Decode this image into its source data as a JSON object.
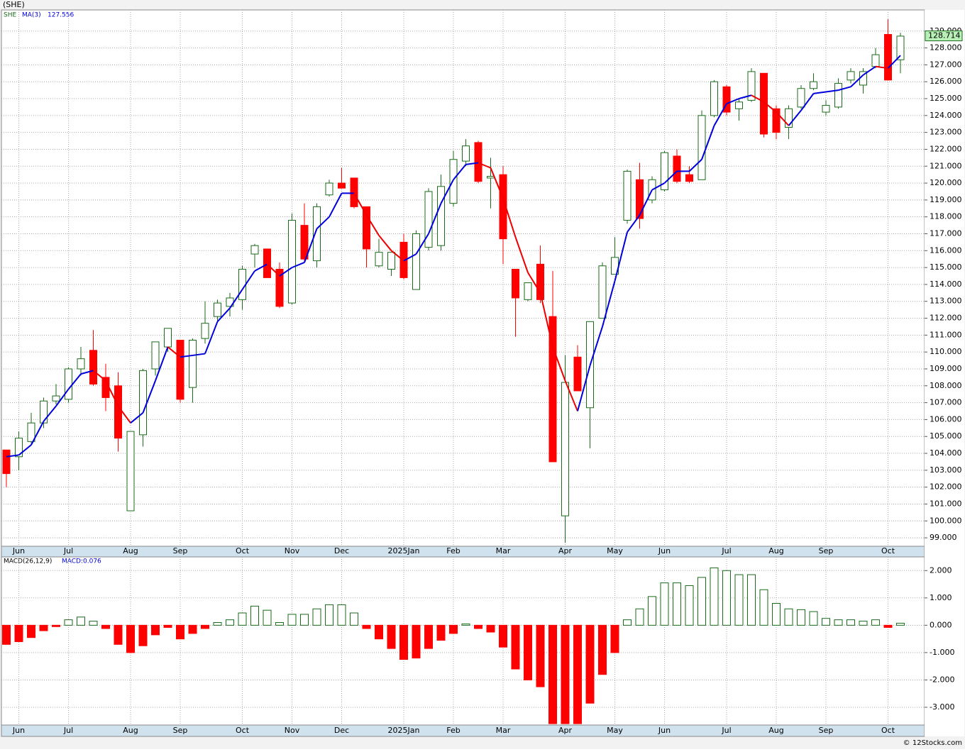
{
  "chart_data": [
    {
      "type": "candlestick",
      "title": "(SHE)",
      "symbol": "SHE",
      "categories": [
        null,
        "Jun",
        null,
        null,
        null,
        "Jul",
        null,
        null,
        null,
        null,
        "Aug",
        null,
        null,
        null,
        "Sep",
        null,
        null,
        null,
        null,
        "Oct",
        null,
        null,
        null,
        "Nov",
        null,
        null,
        null,
        "Dec",
        null,
        null,
        null,
        null,
        "2025Jan",
        null,
        null,
        null,
        "Feb",
        null,
        null,
        null,
        "Mar",
        null,
        null,
        null,
        null,
        "Apr",
        null,
        null,
        null,
        "May",
        null,
        null,
        null,
        "Jun",
        null,
        null,
        null,
        null,
        "Jul",
        null,
        null,
        null,
        "Aug",
        null,
        null,
        null,
        "Sep",
        null,
        null,
        null,
        null,
        "Oct",
        null
      ],
      "open": [
        104.2,
        103.8,
        104.7,
        105.8,
        107.1,
        107.2,
        109,
        110.1,
        108.5,
        108,
        100.6,
        105.1,
        109,
        110.3,
        110.7,
        107.9,
        110.8,
        112.1,
        112.7,
        113.1,
        115.8,
        116.1,
        114.9,
        112.9,
        117.5,
        115.4,
        119.3,
        120,
        120.3,
        118.6,
        115.1,
        114.9,
        116.5,
        113.7,
        116.2,
        116.3,
        118.8,
        121.3,
        122.4,
        120.3,
        120.5,
        114.9,
        113.1,
        115.2,
        112.1,
        100.3,
        109.7,
        106.7,
        112,
        114.6,
        117.8,
        120.2,
        119,
        119.6,
        121.6,
        120.5,
        120.2,
        124,
        125.7,
        124.4,
        124.9,
        126.5,
        124.4,
        123.3,
        124.5,
        125.6,
        124.2,
        124.5,
        126.1,
        125.8,
        126.9,
        128.8,
        127.3
      ],
      "high": [
        104.2,
        105.3,
        106.4,
        107.3,
        108.1,
        109.1,
        110.3,
        111.3,
        109.3,
        108.8,
        105.3,
        109,
        110.6,
        111.4,
        110.7,
        110.8,
        113,
        113.1,
        113.5,
        115.1,
        116.4,
        116.1,
        115.3,
        118.2,
        118.8,
        118.8,
        120.2,
        120.9,
        120.3,
        118.6,
        116.7,
        115.9,
        117,
        117.2,
        119.7,
        120.5,
        121.9,
        122.6,
        122.5,
        121.5,
        121,
        114.9,
        114.1,
        116.3,
        114.8,
        109.8,
        110.4,
        111.8,
        115.3,
        116.8,
        120.8,
        121.2,
        120.4,
        121.9,
        122,
        121,
        124.3,
        126.1,
        125.8,
        125,
        126.8,
        126.5,
        124.6,
        124.6,
        125.8,
        126.5,
        124.9,
        126.2,
        126.8,
        126.8,
        128,
        129.7,
        128.9
      ],
      "low": [
        102,
        103,
        104.6,
        105.5,
        106.9,
        107,
        108.6,
        108,
        106.5,
        104.1,
        100.6,
        104.4,
        108.6,
        110,
        107,
        107,
        110.5,
        111.8,
        112.1,
        112.5,
        115,
        114.4,
        112.6,
        112.8,
        115.3,
        115,
        119.2,
        119.7,
        118.5,
        115,
        115,
        114.5,
        114.3,
        113.7,
        116,
        116,
        118.6,
        121,
        120,
        118.5,
        115.2,
        110.9,
        113,
        112.9,
        103.5,
        98.7,
        107.7,
        104.3,
        112,
        114.6,
        117.6,
        117.3,
        118.8,
        119.5,
        120,
        120,
        120.2,
        123.9,
        124,
        123.7,
        124.8,
        122.7,
        122.6,
        122.6,
        124.4,
        125.5,
        124,
        124.4,
        125.9,
        125.3,
        126.8,
        126.1,
        126.5
      ],
      "close": [
        102.8,
        104.9,
        105.8,
        107.1,
        107.4,
        109,
        109.6,
        108.1,
        107.3,
        104.9,
        105.3,
        108.9,
        110.6,
        111.4,
        107.2,
        110.7,
        111.7,
        112.9,
        113.2,
        114.9,
        116.3,
        114.4,
        112.7,
        117.8,
        115.5,
        118.6,
        120,
        119.7,
        118.6,
        116.1,
        115.9,
        115.9,
        114.4,
        117,
        119.5,
        119.8,
        121.4,
        122.2,
        120.1,
        120.4,
        116.7,
        113.2,
        114.1,
        113.1,
        103.5,
        108.2,
        107.7,
        111.8,
        115.1,
        115.6,
        120.7,
        117.9,
        120.2,
        121.8,
        120.1,
        120.1,
        124,
        126,
        124.2,
        124.8,
        126.6,
        122.9,
        123,
        124.4,
        125.6,
        126,
        124.6,
        125.9,
        126.6,
        126.6,
        127.6,
        126.1,
        128.7
      ],
      "colors": {
        "up": "#1a6b1a",
        "down": "#ff0000",
        "up_fill": "#ffffff"
      },
      "ma": {
        "name": "MA(3)",
        "color": "#0000dd",
        "falling_color": "#ee0000",
        "values": [
          103.8,
          103.9,
          104.5,
          105.9,
          106.8,
          107.8,
          108.7,
          108.9,
          108.3,
          106.8,
          105.8,
          106.4,
          108.3,
          110.3,
          109.7,
          109.8,
          109.9,
          111.8,
          112.6,
          113.7,
          114.8,
          115.2,
          114.5,
          115,
          115.3,
          117.3,
          118,
          119.4,
          119.4,
          118.1,
          116.9,
          116,
          115.4,
          115.8,
          117,
          118.8,
          120.2,
          121.1,
          121.2,
          120.9,
          119.1,
          116.8,
          114.7,
          113.5,
          110.3,
          108.3,
          106.5,
          109.2,
          111.5,
          114.2,
          117.1,
          118.1,
          119.6,
          120,
          120.7,
          120.7,
          121.4,
          123.4,
          124.7,
          125,
          125.2,
          124.8,
          124.2,
          123.4,
          124.3,
          125.3,
          125.4,
          125.5,
          125.7,
          126.4,
          126.9,
          126.8,
          127.556
        ]
      },
      "last_price": 128.714,
      "ylim": [
        98.5,
        130.25
      ],
      "yticks": [
        {
          "value": 99,
          "label": "99.000"
        },
        {
          "value": 100,
          "label": "100.000"
        },
        {
          "value": 101,
          "label": "101.000"
        },
        {
          "value": 102,
          "label": "102.000"
        },
        {
          "value": 103,
          "label": "103.000"
        },
        {
          "value": 104,
          "label": "104.000"
        },
        {
          "value": 105,
          "label": "105.000"
        },
        {
          "value": 106,
          "label": "106.000"
        },
        {
          "value": 107,
          "label": "107.000"
        },
        {
          "value": 108,
          "label": "108.000"
        },
        {
          "value": 109,
          "label": "109.000"
        },
        {
          "value": 110,
          "label": "110.000"
        },
        {
          "value": 111,
          "label": "111.000"
        },
        {
          "value": 112,
          "label": "112.000"
        },
        {
          "value": 113,
          "label": "113.000"
        },
        {
          "value": 114,
          "label": "114.000"
        },
        {
          "value": 115,
          "label": "115.000"
        },
        {
          "value": 116,
          "label": "116.000"
        },
        {
          "value": 117,
          "label": "117.000"
        },
        {
          "value": 118,
          "label": "118.000"
        },
        {
          "value": 119,
          "label": "119.000"
        },
        {
          "value": 120,
          "label": "120.000"
        },
        {
          "value": 121,
          "label": "121.000"
        },
        {
          "value": 122,
          "label": "122.000"
        },
        {
          "value": 123,
          "label": "123.000"
        },
        {
          "value": 124,
          "label": "124.000"
        },
        {
          "value": 125,
          "label": "125.000"
        },
        {
          "value": 126,
          "label": "126.000"
        },
        {
          "value": 127,
          "label": "127.000"
        },
        {
          "value": 128,
          "label": "128.000"
        },
        {
          "value": 129,
          "label": "129.000"
        }
      ],
      "grid": true
    },
    {
      "type": "bar",
      "title": "MACD(26,12,9)",
      "current_label": "MACD:0.076",
      "categories": [
        null,
        "Jun",
        null,
        null,
        null,
        "Jul",
        null,
        null,
        null,
        null,
        "Aug",
        null,
        null,
        null,
        "Sep",
        null,
        null,
        null,
        null,
        "Oct",
        null,
        null,
        null,
        "Nov",
        null,
        null,
        null,
        "Dec",
        null,
        null,
        null,
        null,
        "2025Jan",
        null,
        null,
        null,
        "Feb",
        null,
        null,
        null,
        "Mar",
        null,
        null,
        null,
        null,
        "Apr",
        null,
        null,
        null,
        "May",
        null,
        null,
        null,
        "Jun",
        null,
        null,
        null,
        null,
        "Jul",
        null,
        null,
        null,
        "Aug",
        null,
        null,
        null,
        "Sep",
        null,
        null,
        null,
        null,
        "Oct",
        null
      ],
      "values": [
        -0.7,
        -0.6,
        -0.45,
        -0.2,
        -0.05,
        0.2,
        0.3,
        0.15,
        -0.12,
        -0.7,
        -1,
        -0.75,
        -0.35,
        -0.08,
        -0.5,
        -0.3,
        -0.12,
        0.1,
        0.2,
        0.45,
        0.7,
        0.55,
        0.1,
        0.4,
        0.4,
        0.6,
        0.75,
        0.75,
        0.45,
        -0.12,
        -0.5,
        -0.85,
        -1.25,
        -1.2,
        -0.85,
        -0.55,
        -0.3,
        0.05,
        -0.12,
        -0.25,
        -0.8,
        -1.6,
        -2,
        -2.25,
        -3.6,
        -3.6,
        -3.6,
        -2.85,
        -1.8,
        -1,
        0.2,
        0.6,
        1.05,
        1.55,
        1.55,
        1.45,
        1.75,
        2.1,
        2,
        1.85,
        1.85,
        1.3,
        0.8,
        0.6,
        0.57,
        0.5,
        0.25,
        0.2,
        0.2,
        0.15,
        0.2,
        -0.08,
        0.076
      ],
      "colors": {
        "positive": "#1a6b1a",
        "negative": "#ff0000"
      },
      "ylim": [
        -3.65,
        2.5
      ],
      "yticks": [
        {
          "value": 2,
          "label": "2.000"
        },
        {
          "value": 1,
          "label": "1.000"
        },
        {
          "value": 0,
          "label": "0.000"
        },
        {
          "value": -1,
          "label": "-1.000"
        },
        {
          "value": -2,
          "label": "-2.000"
        },
        {
          "value": -3,
          "label": "-3.000"
        }
      ],
      "grid": true
    }
  ],
  "footer": "© 12Stocks.com"
}
